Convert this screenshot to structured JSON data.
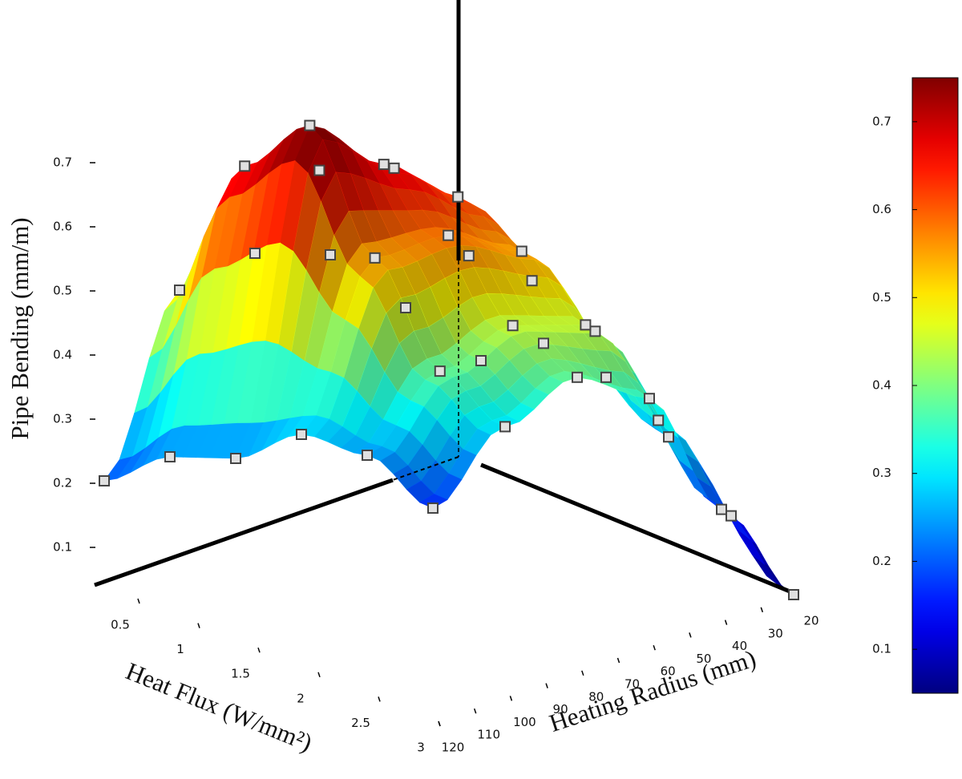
{
  "chart_data": {
    "type": "surface3d",
    "zlabel": "Pipe Bending (mm/m)",
    "xlabel": "Heat Flux (W/mm²)",
    "ylabel": "Heating Radius  (mm)",
    "x": [
      0.5,
      1,
      1.5,
      2,
      2.5,
      3
    ],
    "y": [
      20,
      40,
      60,
      80,
      100,
      120
    ],
    "z": [
      [
        0.3,
        0.35,
        0.32,
        0.25,
        0.15,
        0.05
      ],
      [
        0.4,
        0.5,
        0.48,
        0.42,
        0.3,
        0.18
      ],
      [
        0.5,
        0.65,
        0.62,
        0.55,
        0.45,
        0.35
      ],
      [
        0.52,
        0.66,
        0.68,
        0.58,
        0.45,
        0.38
      ],
      [
        0.48,
        0.68,
        0.75,
        0.55,
        0.38,
        0.3
      ],
      [
        0.2,
        0.24,
        0.24,
        0.28,
        0.25,
        0.17
      ]
    ],
    "xlim": [
      0.5,
      3
    ],
    "xticks": [
      0.5,
      1,
      1.5,
      2,
      2.5,
      3
    ],
    "ylim": [
      20,
      120
    ],
    "yticks": [
      20,
      30,
      40,
      50,
      60,
      70,
      80,
      90,
      100,
      110,
      120
    ],
    "zlim": [
      0,
      0.95
    ],
    "zticks": [
      0.1,
      0.2,
      0.3,
      0.4,
      0.5,
      0.6,
      0.7
    ],
    "colormap": "jet",
    "clim": [
      0.05,
      0.75
    ],
    "cticks": [
      0.1,
      0.2,
      0.3,
      0.4,
      0.5,
      0.6,
      0.7
    ],
    "marker_color": "#e0e0e0"
  }
}
